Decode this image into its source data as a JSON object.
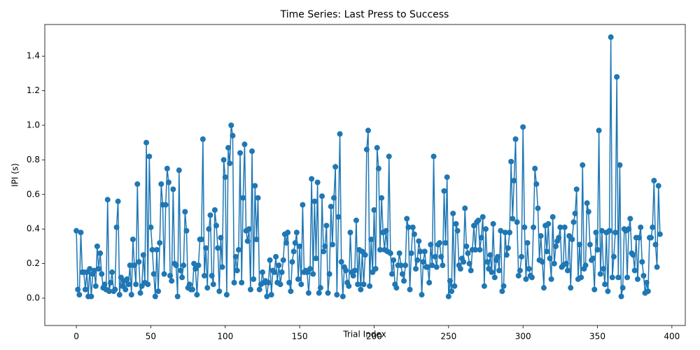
{
  "chart_data": {
    "type": "line",
    "title": "Time Series: Last Press to Success",
    "xlabel": "Trial Index",
    "ylabel": "IPI (s)",
    "color": "#1f77b4",
    "marker": "o",
    "xlim": [
      -21.2,
      409.0
    ],
    "xticks": [
      0,
      50,
      100,
      150,
      200,
      250,
      300,
      350,
      400
    ],
    "ylim": [
      -0.158,
      1.583
    ],
    "yticks": [
      {
        "value": 0.0,
        "label": "0.0"
      },
      0.2,
      0.4,
      0.6,
      0.8,
      {
        "value": 1.0,
        "label": "1.0"
      },
      1.2,
      1.4
    ],
    "values": [
      0.39,
      0.05,
      0.02,
      0.38,
      0.15,
      0.15,
      0.05,
      0.15,
      0.01,
      0.17,
      0.01,
      0.14,
      0.16,
      0.07,
      0.3,
      0.17,
      0.26,
      0.14,
      0.06,
      0.08,
      0.05,
      0.57,
      0.04,
      0.09,
      0.15,
      0.04,
      0.05,
      0.41,
      0.56,
      0.02,
      0.12,
      0.07,
      0.1,
      0.05,
      0.11,
      0.08,
      0.19,
      0.02,
      0.34,
      0.19,
      0.08,
      0.66,
      0.21,
      0.03,
      0.07,
      0.25,
      0.09,
      0.9,
      0.08,
      0.82,
      0.41,
      0.28,
      0.14,
      0.01,
      0.28,
      0.04,
      0.32,
      0.66,
      0.54,
      0.14,
      0.54,
      0.75,
      0.67,
      0.13,
      0.1,
      0.63,
      0.2,
      0.19,
      0.01,
      0.74,
      0.16,
      0.12,
      0.19,
      0.5,
      0.39,
      0.06,
      0.08,
      0.05,
      0.05,
      0.2,
      0.17,
      0.02,
      0.19,
      0.34,
      0.34,
      0.92,
      0.13,
      0.29,
      0.06,
      0.4,
      0.48,
      0.13,
      0.08,
      0.51,
      0.42,
      0.29,
      0.04,
      0.35,
      0.18,
      0.8,
      0.7,
      0.02,
      0.87,
      0.78,
      1.0,
      0.94,
      0.09,
      0.24,
      0.16,
      0.28,
      0.84,
      0.09,
      0.58,
      0.89,
      0.39,
      0.33,
      0.4,
      0.05,
      0.85,
      0.11,
      0.65,
      0.34,
      0.58,
      0.05,
      0.08,
      0.15,
      0.09,
      0.1,
      0.01,
      0.09,
      0.22,
      0.02,
      0.16,
      0.15,
      0.24,
      0.09,
      0.19,
      0.08,
      0.15,
      0.22,
      0.37,
      0.32,
      0.38,
      0.09,
      0.04,
      0.21,
      0.27,
      0.32,
      0.38,
      0.11,
      0.3,
      0.08,
      0.54,
      0.15,
      0.16,
      0.15,
      0.03,
      0.17,
      0.69,
      0.14,
      0.56,
      0.23,
      0.67,
      0.03,
      0.06,
      0.59,
      0.27,
      0.3,
      0.42,
      0.03,
      0.14,
      0.53,
      0.31,
      0.58,
      0.76,
      0.02,
      0.47,
      0.95,
      0.21,
      0.01,
      0.18,
      0.16,
      0.09,
      0.07,
      0.38,
      0.15,
      0.13,
      0.16,
      0.45,
      0.08,
      0.28,
      0.05,
      0.27,
      0.08,
      0.25,
      0.86,
      0.97,
      0.07,
      0.34,
      0.15,
      0.51,
      0.17,
      0.87,
      0.75,
      0.28,
      0.58,
      0.38,
      0.28,
      0.39,
      0.27,
      0.82,
      0.26,
      0.14,
      0.22,
      0.08,
      0.06,
      0.19,
      0.26,
      0.19,
      0.14,
      0.1,
      0.19,
      0.46,
      0.41,
      0.05,
      0.26,
      0.41,
      0.37,
      0.17,
      0.22,
      0.33,
      0.27,
      0.02,
      0.21,
      0.27,
      0.18,
      0.18,
      0.09,
      0.31,
      0.19,
      0.82,
      0.24,
      0.18,
      0.31,
      0.32,
      0.24,
      0.19,
      0.62,
      0.32,
      0.7,
      0.01,
      0.1,
      0.04,
      0.49,
      0.07,
      0.43,
      0.39,
      0.19,
      0.17,
      0.23,
      0.21,
      0.52,
      0.3,
      0.26,
      0.2,
      0.16,
      0.28,
      0.42,
      0.28,
      0.44,
      0.45,
      0.28,
      0.35,
      0.47,
      0.07,
      0.4,
      0.21,
      0.17,
      0.25,
      0.15,
      0.43,
      0.12,
      0.22,
      0.24,
      0.16,
      0.39,
      0.04,
      0.07,
      0.38,
      0.25,
      0.29,
      0.38,
      0.79,
      0.46,
      0.68,
      0.92,
      0.44,
      0.13,
      0.16,
      0.24,
      0.99,
      0.41,
      0.11,
      0.32,
      0.17,
      0.13,
      0.12,
      0.41,
      0.75,
      0.66,
      0.52,
      0.22,
      0.36,
      0.21,
      0.06,
      0.42,
      0.27,
      0.43,
      0.23,
      0.11,
      0.47,
      0.2,
      0.3,
      0.33,
      0.35,
      0.41,
      0.18,
      0.19,
      0.41,
      0.2,
      0.16,
      0.36,
      0.06,
      0.34,
      0.44,
      0.49,
      0.63,
      0.11,
      0.31,
      0.12,
      0.77,
      0.17,
      0.19,
      0.55,
      0.5,
      0.31,
      0.22,
      0.23,
      0.05,
      0.38,
      0.28,
      0.97,
      0.14,
      0.39,
      0.17,
      0.08,
      0.38,
      0.04,
      0.39,
      1.51,
      0.12,
      0.24,
      0.38,
      1.28,
      0.12,
      0.77,
      0.01,
      0.06,
      0.4,
      0.39,
      0.12,
      0.4,
      0.46,
      0.26,
      0.25,
      0.16,
      0.35,
      0.11,
      0.35,
      0.41,
      0.21,
      0.13,
      0.03,
      0.09,
      0.04,
      0.35,
      0.35,
      0.41,
      0.68,
      0.31,
      0.18,
      0.65,
      0.37
    ]
  }
}
